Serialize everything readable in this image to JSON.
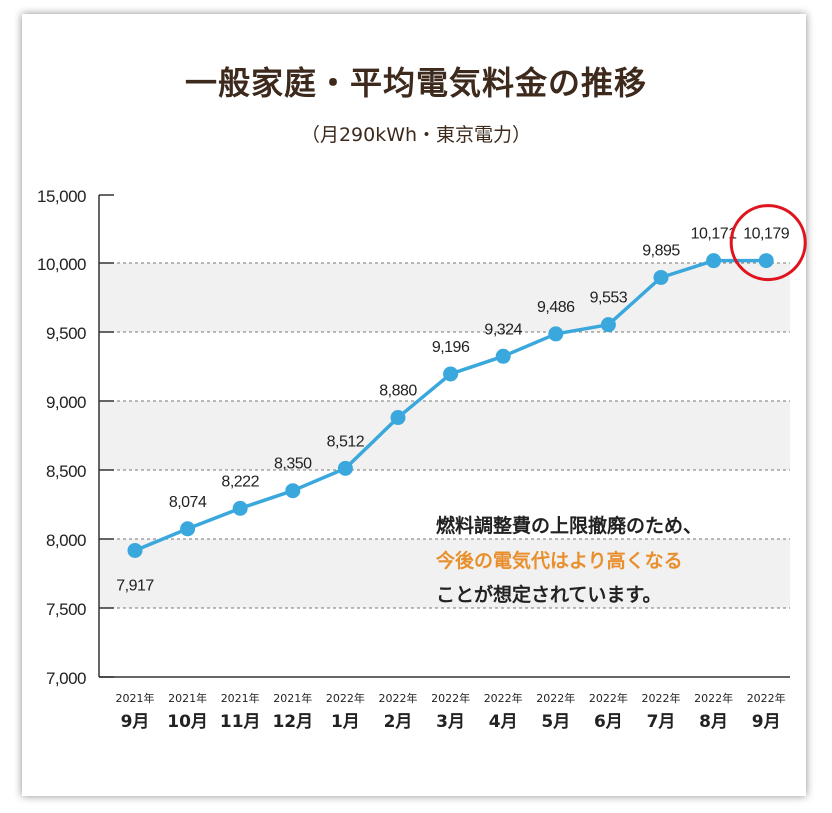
{
  "title": "一般家庭・平均電気料金の推移",
  "subtitle": "（月290kWh・東京電力）",
  "note": {
    "line1": "燃料調整費の上限撤廃のため、",
    "line2": "今後の電気代はより高くなる",
    "line3": "ことが想定されています。"
  },
  "colors": {
    "line": "#3aa8dc",
    "band": "#f2f1f1",
    "highlight_circle": "#e0141e",
    "highlight_text": "#e8902e",
    "title": "#3d2a1d"
  },
  "chart_data": {
    "type": "line",
    "title": "一般家庭・平均電気料金の推移",
    "subtitle": "（月290kWh・東京電力）",
    "categories": [
      {
        "year": "2021年",
        "month": "9月"
      },
      {
        "year": "2021年",
        "month": "10月"
      },
      {
        "year": "2021年",
        "month": "11月"
      },
      {
        "year": "2021年",
        "month": "12月"
      },
      {
        "year": "2022年",
        "month": "1月"
      },
      {
        "year": "2022年",
        "month": "2月"
      },
      {
        "year": "2022年",
        "month": "3月"
      },
      {
        "year": "2022年",
        "month": "4月"
      },
      {
        "year": "2022年",
        "month": "5月"
      },
      {
        "year": "2022年",
        "month": "6月"
      },
      {
        "year": "2022年",
        "month": "7月"
      },
      {
        "year": "2022年",
        "month": "8月"
      },
      {
        "year": "2022年",
        "month": "9月"
      }
    ],
    "values": [
      7917,
      8074,
      8222,
      8350,
      8512,
      8880,
      9196,
      9324,
      9486,
      9553,
      9895,
      10171,
      10179
    ],
    "value_labels": [
      "7,917",
      "8,074",
      "8,222",
      "8,350",
      "8,512",
      "8,880",
      "9,196",
      "9,324",
      "9,486",
      "9,553",
      "9,895",
      "10,171",
      "10,179"
    ],
    "ylim": [
      7000,
      15000
    ],
    "y_ticks": [
      {
        "value": 7000,
        "label": "7,000"
      },
      {
        "value": 7500,
        "label": "7,500"
      },
      {
        "value": 8000,
        "label": "8,000"
      },
      {
        "value": 8500,
        "label": "8,500"
      },
      {
        "value": 9000,
        "label": "9,000"
      },
      {
        "value": 9500,
        "label": "9,500"
      },
      {
        "value": 10000,
        "label": "10,000"
      },
      {
        "value": 15000,
        "label": "15,000"
      }
    ],
    "y_axis_break": "between 10,000 and 15,000",
    "grid": "dashed horizontal at 7,500–10,000 with alternating shaded bands",
    "highlight_point": "2022年 9月"
  }
}
